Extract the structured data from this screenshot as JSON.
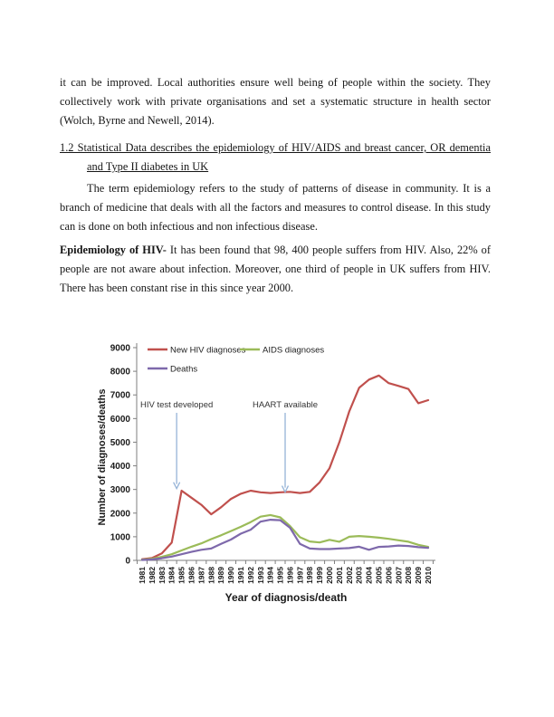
{
  "document": {
    "para1": "it can be improved. Local authorities ensure well being of people within the society. They collectively work with private organisations and set a systematic structure in health sector (Wolch, Byrne and Newell, 2014).",
    "heading_lines": [
      "1.2 Statistical Data describes the epidemiology of HIV/AIDS and breast cancer, OR dementia",
      "and Type II diabetes in UK"
    ],
    "para2": "The term epidemiology refers to the study of patterns of disease in community. It is a branch of medicine that deals with all the factors and measures to control disease. In this study can is done on both infectious and non infectious disease.",
    "para3_label": "Epidemiology of HIV-",
    "para3_text": " It has been found that 98, 400 people suffers from HIV. Also, 22% of people are not aware about infection. Moreover, one third of people in UK suffers from HIV. There has been constant rise in this since year 2000."
  },
  "chart_data": {
    "type": "line",
    "title": "",
    "xlabel": "Year of diagnosis/death",
    "ylabel": "Number of diagnoses/deaths",
    "ylim": [
      0,
      9000
    ],
    "ytick_interval": 1000,
    "grid": false,
    "legend_position": "top-left-inside",
    "axis_color": "#7f7f7f",
    "arrow_color": "#95B3D7",
    "categories": [
      "1981",
      "1982",
      "1983",
      "1984",
      "1985",
      "1986",
      "1987",
      "1988",
      "1989",
      "1990",
      "1991",
      "1992",
      "1993",
      "1994",
      "1995",
      "1996",
      "1997",
      "1998",
      "1999",
      "2000",
      "2001",
      "2002",
      "2003",
      "2004",
      "2005",
      "2006",
      "2007",
      "2008",
      "2009",
      "2010"
    ],
    "series": [
      {
        "name": "New HIV diagnoses",
        "color": "#C0504D",
        "values": [
          50,
          100,
          300,
          750,
          2950,
          2650,
          2350,
          1950,
          2250,
          2600,
          2820,
          2950,
          2880,
          2850,
          2880,
          2900,
          2850,
          2900,
          3300,
          3900,
          5000,
          6300,
          7300,
          7650,
          7820,
          7500,
          7380,
          7250,
          6650,
          6780
        ]
      },
      {
        "name": "AIDS diagnoses",
        "color": "#9BBB59",
        "values": [
          30,
          70,
          150,
          260,
          420,
          580,
          720,
          900,
          1060,
          1240,
          1420,
          1620,
          1850,
          1920,
          1820,
          1450,
          980,
          800,
          760,
          870,
          790,
          1000,
          1030,
          1000,
          960,
          910,
          850,
          790,
          660,
          570
        ]
      },
      {
        "name": "Deaths",
        "color": "#7E69AB",
        "values": [
          20,
          40,
          90,
          160,
          260,
          360,
          450,
          500,
          700,
          880,
          1130,
          1300,
          1640,
          1720,
          1700,
          1380,
          700,
          500,
          480,
          480,
          500,
          520,
          580,
          450,
          570,
          590,
          630,
          610,
          560,
          530
        ]
      }
    ],
    "annotations": [
      {
        "text": "HIV test developed",
        "between_years": [
          "1984",
          "1985"
        ],
        "points_to_value": 3000
      },
      {
        "text": "HAART available",
        "between_years": [
          "1995",
          "1996"
        ],
        "points_to_value": 2850
      }
    ]
  }
}
